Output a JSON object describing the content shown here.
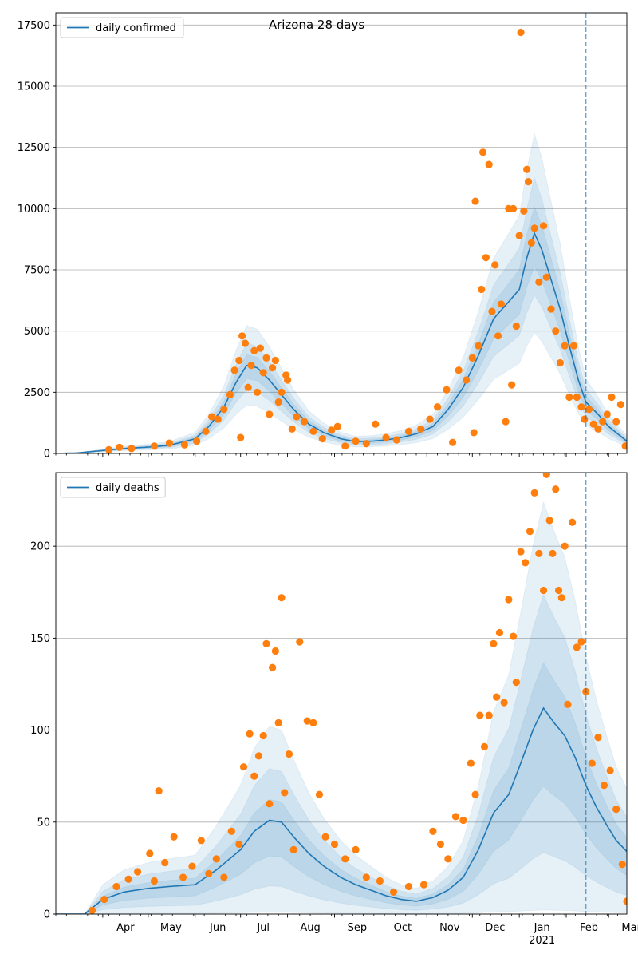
{
  "title": "Arizona 28 days",
  "colors": {
    "line": "#1f77b4",
    "points": "#ff7f0e",
    "band": "#1f77b4",
    "vline": "#1f77b4",
    "grid": "#b0b0b0"
  },
  "x_axis": {
    "start_date": "2020-03-01",
    "end_date": "2021-03-13",
    "month_ticks": [
      {
        "date": "2020-04-01",
        "label": "Apr"
      },
      {
        "date": "2020-05-01",
        "label": "May"
      },
      {
        "date": "2020-06-01",
        "label": "Jun"
      },
      {
        "date": "2020-07-01",
        "label": "Jul"
      },
      {
        "date": "2020-08-01",
        "label": "Aug"
      },
      {
        "date": "2020-09-01",
        "label": "Sep"
      },
      {
        "date": "2020-10-01",
        "label": "Oct"
      },
      {
        "date": "2020-11-01",
        "label": "Nov"
      },
      {
        "date": "2020-12-01",
        "label": "Dec"
      },
      {
        "date": "2021-01-01",
        "label": "Jan"
      },
      {
        "date": "2021-02-01",
        "label": "Feb"
      },
      {
        "date": "2021-03-01",
        "label": "Mar"
      }
    ],
    "year_label": "2021",
    "year_label_date": "2021-01-01",
    "forecast_date": "2021-02-14"
  },
  "chart_data": [
    {
      "type": "line",
      "legend": "daily confirmed",
      "legend_position": "top-left",
      "grid": true,
      "ylim": [
        0,
        18000
      ],
      "yticks": [
        0,
        2500,
        5000,
        7500,
        10000,
        12500,
        15000,
        17500
      ],
      "line_points": [
        [
          "2020-03-01",
          0
        ],
        [
          "2020-03-15",
          20
        ],
        [
          "2020-04-01",
          120
        ],
        [
          "2020-04-15",
          200
        ],
        [
          "2020-05-01",
          260
        ],
        [
          "2020-05-15",
          330
        ],
        [
          "2020-06-01",
          600
        ],
        [
          "2020-06-10",
          1100
        ],
        [
          "2020-06-20",
          1900
        ],
        [
          "2020-06-28",
          2900
        ],
        [
          "2020-07-05",
          3600
        ],
        [
          "2020-07-12",
          3500
        ],
        [
          "2020-07-20",
          3000
        ],
        [
          "2020-07-28",
          2400
        ],
        [
          "2020-08-05",
          1800
        ],
        [
          "2020-08-15",
          1200
        ],
        [
          "2020-08-25",
          850
        ],
        [
          "2020-09-05",
          600
        ],
        [
          "2020-09-15",
          480
        ],
        [
          "2020-09-25",
          500
        ],
        [
          "2020-10-05",
          550
        ],
        [
          "2020-10-15",
          650
        ],
        [
          "2020-10-25",
          800
        ],
        [
          "2020-11-05",
          1100
        ],
        [
          "2020-11-15",
          1800
        ],
        [
          "2020-11-25",
          2700
        ],
        [
          "2020-12-05",
          4000
        ],
        [
          "2020-12-15",
          5500
        ],
        [
          "2020-12-25",
          6200
        ],
        [
          "2021-01-01",
          6700
        ],
        [
          "2021-01-06",
          8000
        ],
        [
          "2021-01-11",
          9000
        ],
        [
          "2021-01-16",
          8300
        ],
        [
          "2021-01-22",
          7100
        ],
        [
          "2021-01-28",
          5900
        ],
        [
          "2021-02-03",
          4400
        ],
        [
          "2021-02-09",
          3000
        ],
        [
          "2021-02-14",
          2100
        ],
        [
          "2021-02-22",
          1600
        ],
        [
          "2021-03-01",
          1100
        ],
        [
          "2021-03-13",
          500
        ]
      ],
      "band_scales": [
        [
          0.55,
          1.45
        ],
        [
          0.72,
          1.25
        ],
        [
          0.85,
          1.12
        ]
      ],
      "points": [
        [
          "2020-04-05",
          150
        ],
        [
          "2020-04-12",
          250
        ],
        [
          "2020-04-20",
          200
        ],
        [
          "2020-05-05",
          300
        ],
        [
          "2020-05-15",
          420
        ],
        [
          "2020-05-25",
          350
        ],
        [
          "2020-06-02",
          500
        ],
        [
          "2020-06-08",
          900
        ],
        [
          "2020-06-12",
          1500
        ],
        [
          "2020-06-16",
          1400
        ],
        [
          "2020-06-20",
          1800
        ],
        [
          "2020-06-24",
          2400
        ],
        [
          "2020-06-27",
          3400
        ],
        [
          "2020-06-30",
          3800
        ],
        [
          "2020-07-01",
          650
        ],
        [
          "2020-07-02",
          4800
        ],
        [
          "2020-07-04",
          4500
        ],
        [
          "2020-07-06",
          2700
        ],
        [
          "2020-07-08",
          3600
        ],
        [
          "2020-07-10",
          4200
        ],
        [
          "2020-07-12",
          2500
        ],
        [
          "2020-07-14",
          4300
        ],
        [
          "2020-07-16",
          3300
        ],
        [
          "2020-07-18",
          3900
        ],
        [
          "2020-07-20",
          1600
        ],
        [
          "2020-07-22",
          3500
        ],
        [
          "2020-07-24",
          3800
        ],
        [
          "2020-07-26",
          2100
        ],
        [
          "2020-07-28",
          2500
        ],
        [
          "2020-07-31",
          3200
        ],
        [
          "2020-08-01",
          3000
        ],
        [
          "2020-08-04",
          1000
        ],
        [
          "2020-08-07",
          1500
        ],
        [
          "2020-08-12",
          1300
        ],
        [
          "2020-08-18",
          900
        ],
        [
          "2020-08-24",
          600
        ],
        [
          "2020-08-30",
          950
        ],
        [
          "2020-09-03",
          1100
        ],
        [
          "2020-09-08",
          300
        ],
        [
          "2020-09-15",
          500
        ],
        [
          "2020-09-22",
          400
        ],
        [
          "2020-09-28",
          1200
        ],
        [
          "2020-10-05",
          650
        ],
        [
          "2020-10-12",
          550
        ],
        [
          "2020-10-20",
          900
        ],
        [
          "2020-10-28",
          1000
        ],
        [
          "2020-11-03",
          1400
        ],
        [
          "2020-11-08",
          1900
        ],
        [
          "2020-11-14",
          2600
        ],
        [
          "2020-11-18",
          450
        ],
        [
          "2020-11-22",
          3400
        ],
        [
          "2020-11-27",
          3000
        ],
        [
          "2020-12-01",
          3900
        ],
        [
          "2020-12-02",
          850
        ],
        [
          "2020-12-03",
          10300
        ],
        [
          "2020-12-05",
          4400
        ],
        [
          "2020-12-07",
          6700
        ],
        [
          "2020-12-08",
          12300
        ],
        [
          "2020-12-10",
          8000
        ],
        [
          "2020-12-12",
          11800
        ],
        [
          "2020-12-14",
          5800
        ],
        [
          "2020-12-16",
          7700
        ],
        [
          "2020-12-18",
          4800
        ],
        [
          "2020-12-20",
          6100
        ],
        [
          "2020-12-23",
          1300
        ],
        [
          "2020-12-25",
          10000
        ],
        [
          "2020-12-27",
          2800
        ],
        [
          "2020-12-28",
          10000
        ],
        [
          "2020-12-30",
          5200
        ],
        [
          "2021-01-01",
          8900
        ],
        [
          "2021-01-02",
          17200
        ],
        [
          "2021-01-04",
          9900
        ],
        [
          "2021-01-06",
          11600
        ],
        [
          "2021-01-07",
          11100
        ],
        [
          "2021-01-09",
          8600
        ],
        [
          "2021-01-11",
          9200
        ],
        [
          "2021-01-14",
          7000
        ],
        [
          "2021-01-17",
          9300
        ],
        [
          "2021-01-19",
          7200
        ],
        [
          "2021-01-22",
          5900
        ],
        [
          "2021-01-25",
          5000
        ],
        [
          "2021-01-28",
          3700
        ],
        [
          "2021-01-31",
          4400
        ],
        [
          "2021-02-03",
          2300
        ],
        [
          "2021-02-06",
          4400
        ],
        [
          "2021-02-08",
          2300
        ],
        [
          "2021-02-11",
          1900
        ],
        [
          "2021-02-13",
          1400
        ],
        [
          "2021-02-16",
          1800
        ],
        [
          "2021-02-19",
          1200
        ],
        [
          "2021-02-22",
          1000
        ],
        [
          "2021-02-25",
          1300
        ],
        [
          "2021-02-28",
          1600
        ],
        [
          "2021-03-03",
          2300
        ],
        [
          "2021-03-06",
          1300
        ],
        [
          "2021-03-09",
          2000
        ],
        [
          "2021-03-12",
          300
        ]
      ]
    },
    {
      "type": "line",
      "legend": "daily deaths",
      "legend_position": "top-left",
      "grid": true,
      "ylim": [
        0,
        240
      ],
      "yticks": [
        0,
        50,
        100,
        150,
        200
      ],
      "line_points": [
        [
          "2020-03-01",
          0
        ],
        [
          "2020-03-20",
          0
        ],
        [
          "2020-04-01",
          8
        ],
        [
          "2020-04-15",
          12
        ],
        [
          "2020-05-01",
          14
        ],
        [
          "2020-05-15",
          15
        ],
        [
          "2020-06-01",
          16
        ],
        [
          "2020-06-15",
          24
        ],
        [
          "2020-07-01",
          35
        ],
        [
          "2020-07-10",
          45
        ],
        [
          "2020-07-20",
          51
        ],
        [
          "2020-07-28",
          50
        ],
        [
          "2020-08-05",
          42
        ],
        [
          "2020-08-15",
          33
        ],
        [
          "2020-08-25",
          26
        ],
        [
          "2020-09-05",
          20
        ],
        [
          "2020-09-15",
          16
        ],
        [
          "2020-09-25",
          13
        ],
        [
          "2020-10-05",
          10
        ],
        [
          "2020-10-15",
          8
        ],
        [
          "2020-10-25",
          7
        ],
        [
          "2020-11-05",
          9
        ],
        [
          "2020-11-15",
          13
        ],
        [
          "2020-11-25",
          20
        ],
        [
          "2020-12-05",
          35
        ],
        [
          "2020-12-15",
          55
        ],
        [
          "2020-12-25",
          65
        ],
        [
          "2021-01-01",
          80
        ],
        [
          "2021-01-10",
          100
        ],
        [
          "2021-01-17",
          112
        ],
        [
          "2021-01-24",
          104
        ],
        [
          "2021-01-31",
          97
        ],
        [
          "2021-02-07",
          85
        ],
        [
          "2021-02-14",
          70
        ],
        [
          "2021-02-21",
          58
        ],
        [
          "2021-02-28",
          48
        ],
        [
          "2021-03-06",
          40
        ],
        [
          "2021-03-13",
          34
        ]
      ],
      "band_scales": [
        [
          0.02,
          2.0
        ],
        [
          0.3,
          1.55
        ],
        [
          0.62,
          1.22
        ]
      ],
      "points": [
        [
          "2020-03-25",
          2
        ],
        [
          "2020-04-02",
          8
        ],
        [
          "2020-04-10",
          15
        ],
        [
          "2020-04-18",
          19
        ],
        [
          "2020-04-24",
          23
        ],
        [
          "2020-05-02",
          33
        ],
        [
          "2020-05-05",
          18
        ],
        [
          "2020-05-08",
          67
        ],
        [
          "2020-05-12",
          28
        ],
        [
          "2020-05-18",
          42
        ],
        [
          "2020-05-24",
          20
        ],
        [
          "2020-05-30",
          26
        ],
        [
          "2020-06-05",
          40
        ],
        [
          "2020-06-10",
          22
        ],
        [
          "2020-06-15",
          30
        ],
        [
          "2020-06-20",
          20
        ],
        [
          "2020-06-25",
          45
        ],
        [
          "2020-06-30",
          38
        ],
        [
          "2020-07-03",
          80
        ],
        [
          "2020-07-07",
          98
        ],
        [
          "2020-07-10",
          75
        ],
        [
          "2020-07-13",
          86
        ],
        [
          "2020-07-16",
          97
        ],
        [
          "2020-07-18",
          147
        ],
        [
          "2020-07-20",
          60
        ],
        [
          "2020-07-22",
          134
        ],
        [
          "2020-07-24",
          143
        ],
        [
          "2020-07-26",
          104
        ],
        [
          "2020-07-28",
          172
        ],
        [
          "2020-07-30",
          66
        ],
        [
          "2020-08-02",
          87
        ],
        [
          "2020-08-05",
          35
        ],
        [
          "2020-08-09",
          148
        ],
        [
          "2020-08-14",
          105
        ],
        [
          "2020-08-18",
          104
        ],
        [
          "2020-08-22",
          65
        ],
        [
          "2020-08-26",
          42
        ],
        [
          "2020-09-01",
          38
        ],
        [
          "2020-09-08",
          30
        ],
        [
          "2020-09-15",
          35
        ],
        [
          "2020-09-22",
          20
        ],
        [
          "2020-10-01",
          18
        ],
        [
          "2020-10-10",
          12
        ],
        [
          "2020-10-20",
          15
        ],
        [
          "2020-10-30",
          16
        ],
        [
          "2020-11-05",
          45
        ],
        [
          "2020-11-10",
          38
        ],
        [
          "2020-11-15",
          30
        ],
        [
          "2020-11-20",
          53
        ],
        [
          "2020-11-25",
          51
        ],
        [
          "2020-11-30",
          82
        ],
        [
          "2020-12-03",
          65
        ],
        [
          "2020-12-06",
          108
        ],
        [
          "2020-12-09",
          91
        ],
        [
          "2020-12-12",
          108
        ],
        [
          "2020-12-15",
          147
        ],
        [
          "2020-12-17",
          118
        ],
        [
          "2020-12-19",
          153
        ],
        [
          "2020-12-22",
          115
        ],
        [
          "2020-12-25",
          171
        ],
        [
          "2020-12-28",
          151
        ],
        [
          "2020-12-30",
          126
        ],
        [
          "2021-01-02",
          197
        ],
        [
          "2021-01-05",
          191
        ],
        [
          "2021-01-08",
          208
        ],
        [
          "2021-01-11",
          229
        ],
        [
          "2021-01-14",
          196
        ],
        [
          "2021-01-17",
          176
        ],
        [
          "2021-01-19",
          239
        ],
        [
          "2021-01-21",
          214
        ],
        [
          "2021-01-23",
          196
        ],
        [
          "2021-01-25",
          231
        ],
        [
          "2021-01-27",
          176
        ],
        [
          "2021-01-29",
          172
        ],
        [
          "2021-01-31",
          200
        ],
        [
          "2021-02-02",
          114
        ],
        [
          "2021-02-05",
          213
        ],
        [
          "2021-02-08",
          145
        ],
        [
          "2021-02-11",
          148
        ],
        [
          "2021-02-14",
          121
        ],
        [
          "2021-02-18",
          82
        ],
        [
          "2021-02-22",
          96
        ],
        [
          "2021-02-26",
          70
        ],
        [
          "2021-03-02",
          78
        ],
        [
          "2021-03-06",
          57
        ],
        [
          "2021-03-10",
          27
        ],
        [
          "2021-03-13",
          7
        ]
      ]
    }
  ]
}
